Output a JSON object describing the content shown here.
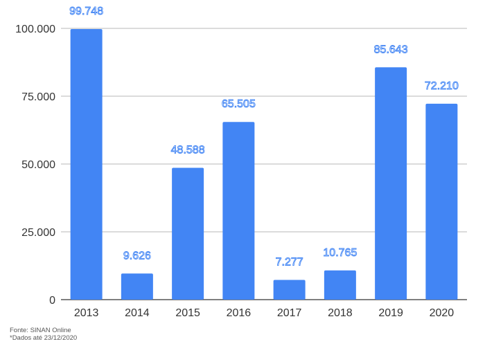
{
  "chart_data": {
    "type": "bar",
    "categories": [
      "2013",
      "2014",
      "2015",
      "2016",
      "2017",
      "2018",
      "2019",
      "2020"
    ],
    "values": [
      99748,
      9626,
      48588,
      65505,
      7277,
      10765,
      85643,
      72210
    ],
    "data_labels": [
      "99.748",
      "9.626",
      "48.588",
      "65.505",
      "7.277",
      "10.765",
      "85.643",
      "72.210"
    ],
    "y_ticks": [
      0,
      25000,
      50000,
      75000,
      100000
    ],
    "y_tick_labels": [
      "0",
      "25.000",
      "50.000",
      "75.000",
      "100.000"
    ],
    "ylim": [
      0,
      100000
    ],
    "grid": true,
    "bar_color": "#4285f4"
  },
  "footnotes": {
    "source": "Fonte: SINAN Online",
    "note": "*Dados até 23/12/2020"
  }
}
